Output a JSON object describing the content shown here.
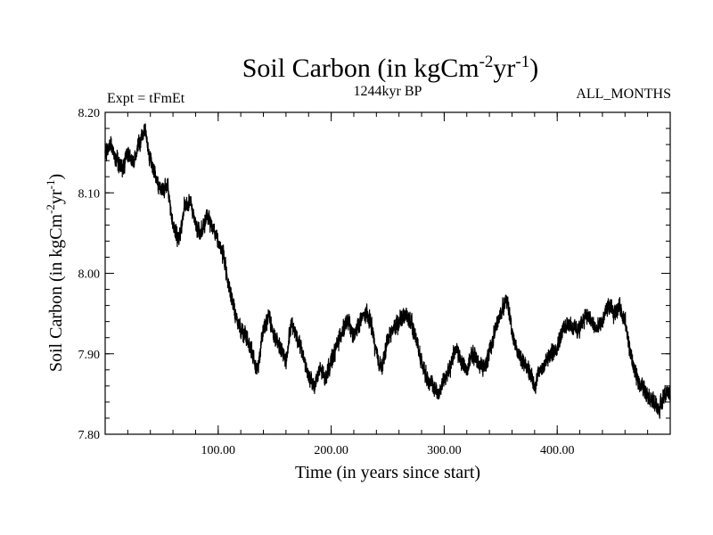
{
  "chart_data": {
    "type": "line",
    "title": "Soil Carbon (in kgCm",
    "title_sup1": "-2",
    "title_mid": "yr",
    "title_sup2": "-1",
    "title_end": ")",
    "subtitle": "1244kyr BP",
    "left_note": "Expt = tFmEt",
    "right_note": "ALL_MONTHS",
    "xlabel": "Time (in years since start)",
    "ylabel": "Soil Carbon (in kgCm",
    "ylabel_sup1": "-2",
    "ylabel_mid": "yr",
    "ylabel_sup2": "-1",
    "ylabel_end": ")",
    "xlim": [
      0,
      500
    ],
    "ylim": [
      7.8,
      8.2
    ],
    "xticks": [
      100,
      200,
      300,
      400
    ],
    "xtick_labels": [
      "100.00",
      "200.00",
      "300.00",
      "400.00"
    ],
    "yticks": [
      7.8,
      7.9,
      8.0,
      8.1,
      8.2
    ],
    "ytick_labels": [
      "7.80",
      "7.90",
      "8.00",
      "8.10",
      "8.20"
    ],
    "grid": false,
    "line_color": "#000000",
    "noise_amplitude": 0.012,
    "series": [
      {
        "x": [
          0,
          5,
          10,
          15,
          20,
          25,
          30,
          35,
          40,
          45,
          50,
          55,
          60,
          65,
          70,
          75,
          80,
          85,
          90,
          95,
          100,
          105,
          110,
          115,
          120,
          125,
          130,
          135,
          140,
          145,
          150,
          155,
          160,
          165,
          170,
          175,
          180,
          185,
          190,
          195,
          200,
          205,
          210,
          215,
          220,
          225,
          230,
          235,
          240,
          245,
          250,
          255,
          260,
          265,
          270,
          275,
          280,
          285,
          290,
          295,
          300,
          305,
          310,
          315,
          320,
          325,
          330,
          335,
          340,
          345,
          350,
          355,
          360,
          365,
          370,
          375,
          380,
          385,
          390,
          395,
          400,
          405,
          410,
          415,
          420,
          425,
          430,
          435,
          440,
          445,
          450,
          455,
          460,
          465,
          470,
          475,
          480,
          485,
          490,
          495,
          500
        ],
        "values": [
          8.15,
          8.16,
          8.14,
          8.13,
          8.15,
          8.14,
          8.16,
          8.18,
          8.14,
          8.12,
          8.1,
          8.11,
          8.06,
          8.04,
          8.08,
          8.09,
          8.06,
          8.05,
          8.07,
          8.06,
          8.04,
          8.02,
          7.98,
          7.95,
          7.93,
          7.92,
          7.9,
          7.88,
          7.93,
          7.95,
          7.92,
          7.91,
          7.89,
          7.94,
          7.92,
          7.9,
          7.87,
          7.86,
          7.88,
          7.87,
          7.89,
          7.91,
          7.93,
          7.94,
          7.92,
          7.94,
          7.95,
          7.94,
          7.9,
          7.88,
          7.92,
          7.93,
          7.94,
          7.95,
          7.94,
          7.92,
          7.89,
          7.87,
          7.86,
          7.85,
          7.87,
          7.88,
          7.91,
          7.89,
          7.88,
          7.9,
          7.89,
          7.88,
          7.9,
          7.93,
          7.95,
          7.97,
          7.93,
          7.9,
          7.89,
          7.88,
          7.86,
          7.88,
          7.89,
          7.9,
          7.91,
          7.93,
          7.94,
          7.93,
          7.93,
          7.95,
          7.94,
          7.93,
          7.94,
          7.96,
          7.95,
          7.96,
          7.94,
          7.9,
          7.87,
          7.86,
          7.85,
          7.84,
          7.83,
          7.85,
          7.85
        ]
      }
    ]
  }
}
